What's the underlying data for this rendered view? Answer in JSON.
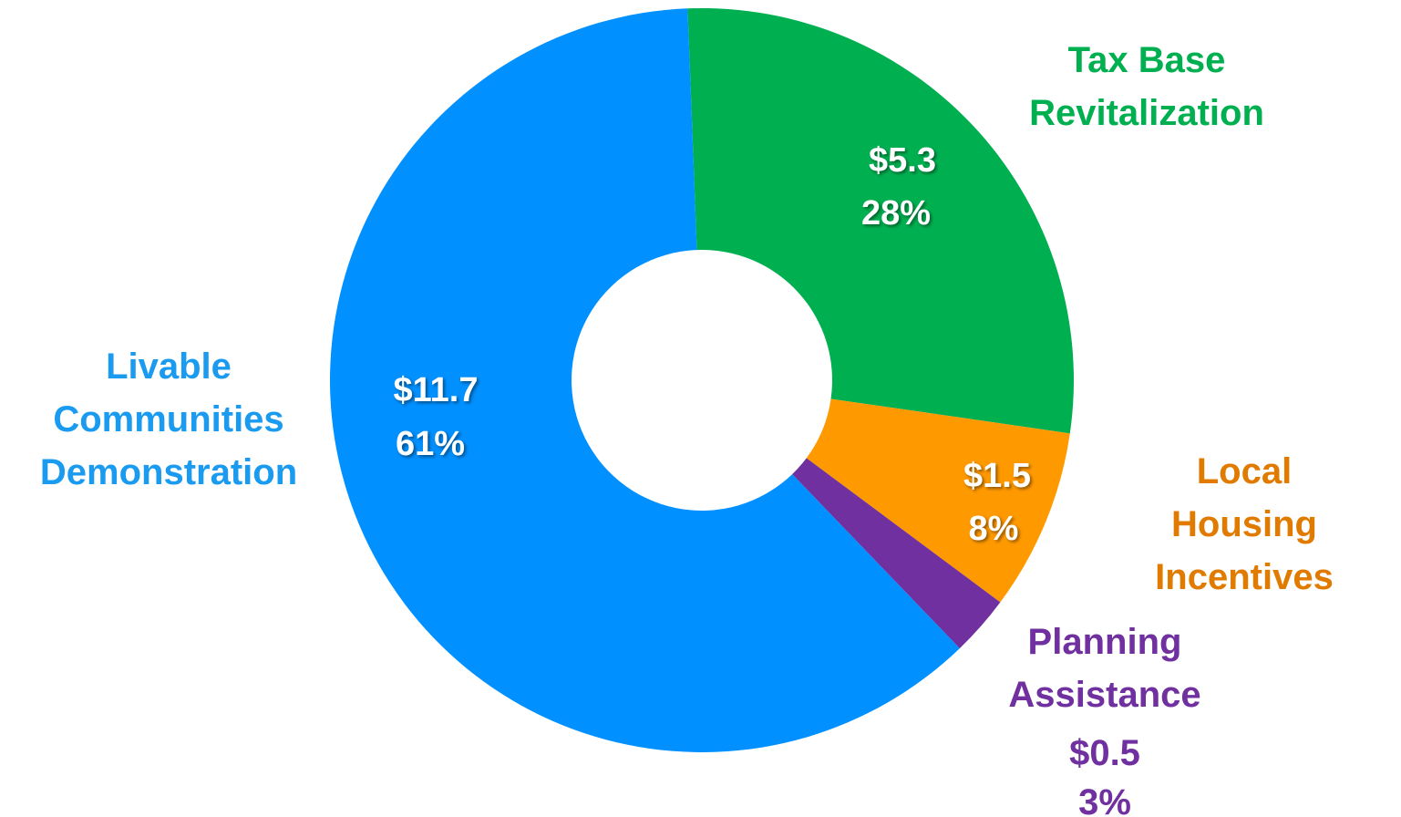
{
  "chart_data": {
    "type": "donut",
    "categories": [
      "Tax Base\nRevitalization",
      "Local Housing\nIncentives",
      "Planning\nAssistance",
      "Livable\nCommunities\nDemonstration"
    ],
    "values": [
      5.3,
      1.5,
      0.5,
      11.7
    ],
    "value_labels": [
      "$5.3",
      "$1.5",
      "$0.5",
      "$11.7"
    ],
    "percent_labels": [
      "28%",
      "8%",
      "3%",
      "61%"
    ],
    "colors": [
      "#00b050",
      "#ff9900",
      "#7030a0",
      "#0090ff"
    ],
    "label_colors": [
      "#00b050",
      "#e07b00",
      "#7030a0",
      "#1a9bf0"
    ]
  }
}
